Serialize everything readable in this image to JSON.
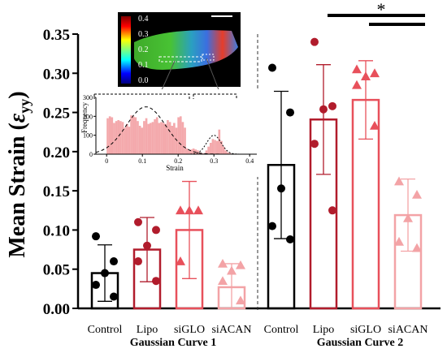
{
  "chart_data": [
    {
      "type": "bar",
      "ylabel_main": "Mean Strain (",
      "ylabel_symbol": "ε",
      "ylabel_sub": "yy",
      "ylabel_close": ")",
      "ylim": [
        0,
        0.35
      ],
      "yticks": [
        "0.00",
        "0.05",
        "0.10",
        "0.15",
        "0.20",
        "0.25",
        "0.30",
        "0.35"
      ],
      "groups": [
        {
          "label": "Gaussian Curve 1",
          "categories": [
            "Control",
            "Lipo",
            "siGLO",
            "siACAN"
          ],
          "means": [
            0.045,
            0.075,
            0.1,
            0.027
          ],
          "sd": [
            0.036,
            0.041,
            0.062,
            0.03
          ],
          "points": [
            [
              0.092,
              0.06,
              0.045,
              0.03,
              0.015
            ],
            [
              0.11,
              0.1,
              0.08,
              0.06,
              0.035
            ],
            [
              0.125,
              0.125,
              0.125,
              0.06
            ],
            [
              0.057,
              0.055,
              0.048,
              0.035,
              0.01
            ]
          ]
        },
        {
          "label": "Gaussian Curve 2",
          "categories": [
            "Control",
            "Lipo",
            "siGLO",
            "siACAN"
          ],
          "means": [
            0.183,
            0.241,
            0.266,
            0.119
          ],
          "sd": [
            0.094,
            0.07,
            0.05,
            0.046
          ],
          "points": [
            [
              0.307,
              0.25,
              0.153,
              0.105,
              0.088
            ],
            [
              0.34,
              0.258,
              0.254,
              0.21,
              0.125
            ],
            [
              0.305,
              0.3,
              0.296,
              0.285,
              0.233
            ],
            [
              0.162,
              0.145,
              0.115,
              0.085,
              0.077
            ]
          ]
        }
      ],
      "colors": [
        "#000000",
        "#b11c2c",
        "#e8505b",
        "#f3a3a6"
      ],
      "markers": [
        "circle",
        "circle",
        "triangle",
        "triangle"
      ],
      "significance": "*",
      "inset": {
        "colorbar_ticks": [
          "0.4",
          "0.3",
          "0.2",
          "0.1",
          "0.0"
        ],
        "histogram": {
          "xlabel": "Strain",
          "ylabel": "Frequency",
          "xticks": [
            "0",
            "0.1",
            "0.2",
            "0.3",
            "0.4"
          ],
          "yticks": [
            "0",
            "100",
            "200",
            "300"
          ],
          "xlim": [
            -0.03,
            0.42
          ],
          "ylim": [
            0,
            300
          ],
          "bin_values": [
            190,
            200,
            195,
            165,
            175,
            180,
            175,
            170,
            140,
            160,
            145,
            205,
            200,
            195,
            175,
            150,
            140,
            175,
            190,
            160,
            165,
            170,
            185,
            195,
            165,
            170,
            165,
            160,
            180,
            170,
            150,
            165,
            140,
            195,
            200,
            170,
            140,
            30,
            20,
            25,
            30,
            25,
            20,
            10,
            5,
            5,
            20,
            40,
            60,
            80,
            75,
            70,
            130,
            70,
            40,
            20,
            10,
            5
          ],
          "bin_start": 0.0,
          "bin_width": 0.006,
          "curve1": {
            "mean": 0.11,
            "sd": 0.055,
            "amp": 250
          },
          "curve2": {
            "mean": 0.3,
            "sd": 0.02,
            "amp": 100
          }
        }
      }
    }
  ]
}
